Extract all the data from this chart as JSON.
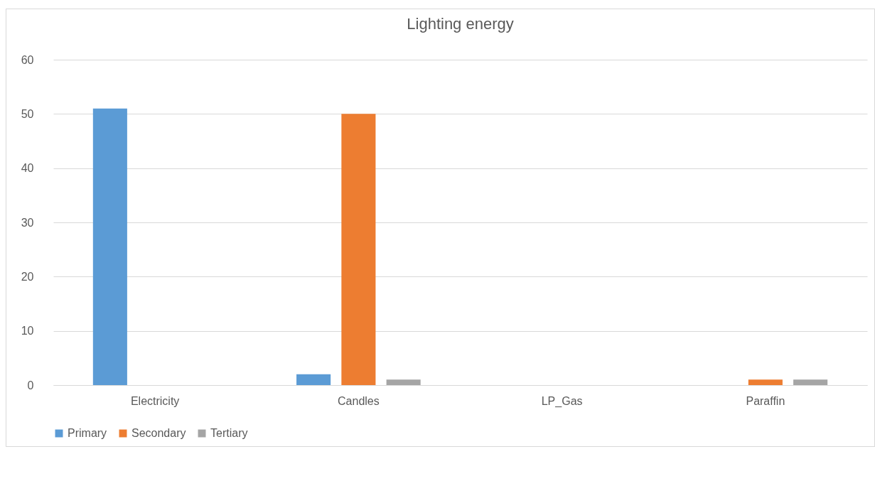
{
  "chart_data": {
    "type": "bar",
    "title": "Lighting energy",
    "categories": [
      "Electricity",
      "Candles",
      "LP_Gas",
      "Paraffin"
    ],
    "series": [
      {
        "name": "Primary",
        "color": "#5b9bd5",
        "values": [
          51,
          2,
          0,
          0
        ]
      },
      {
        "name": "Secondary",
        "color": "#ed7d31",
        "values": [
          0,
          50,
          0,
          1
        ]
      },
      {
        "name": "Tertiary",
        "color": "#a5a5a5",
        "values": [
          0,
          1,
          0,
          1
        ]
      }
    ],
    "ylim": [
      0,
      60
    ],
    "yticks": [
      0,
      10,
      20,
      30,
      40,
      50,
      60
    ],
    "grid": "y",
    "legend": "bottom"
  }
}
